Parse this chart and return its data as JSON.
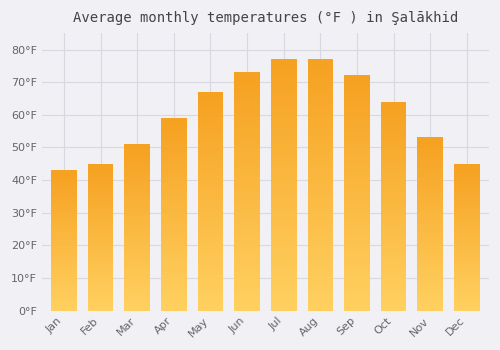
{
  "title": "Average monthly temperatures (°F ) in Şalākhid",
  "months": [
    "Jan",
    "Feb",
    "Mar",
    "Apr",
    "May",
    "Jun",
    "Jul",
    "Aug",
    "Sep",
    "Oct",
    "Nov",
    "Dec"
  ],
  "values": [
    43,
    45,
    51,
    59,
    67,
    73,
    77,
    77,
    72,
    64,
    53,
    45
  ],
  "bar_color_top": "#F5A020",
  "bar_color_bottom": "#FFD060",
  "ylim": [
    0,
    85
  ],
  "yticks": [
    0,
    10,
    20,
    30,
    40,
    50,
    60,
    70,
    80
  ],
  "ytick_labels": [
    "0°F",
    "10°F",
    "20°F",
    "30°F",
    "40°F",
    "50°F",
    "60°F",
    "70°F",
    "80°F"
  ],
  "background_color": "#f0f0f5",
  "plot_bg_color": "#f0f0f5",
  "grid_color": "#d8d8e0",
  "title_fontsize": 10,
  "tick_fontsize": 8,
  "bar_width": 0.7
}
